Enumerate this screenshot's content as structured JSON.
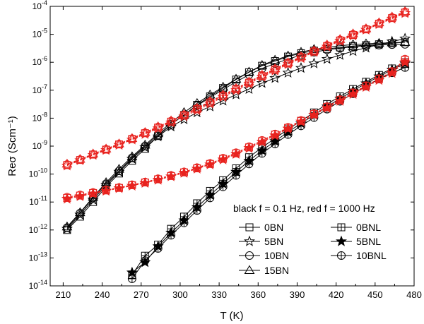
{
  "chart_data": {
    "type": "scatter",
    "xlabel": "T (K)",
    "ylabel": "Reσ (Scm⁻¹)",
    "xlim": [
      200,
      480
    ],
    "ylim_log10": [
      -14,
      -4
    ],
    "y_scale": "log",
    "x_ticks": [
      "210",
      "240",
      "270",
      "300",
      "330",
      "360",
      "390",
      "420",
      "450",
      "480"
    ],
    "y_ticks": [
      {
        "base": "10",
        "exp": "-14"
      },
      {
        "base": "10",
        "exp": "-13"
      },
      {
        "base": "10",
        "exp": "-12"
      },
      {
        "base": "10",
        "exp": "-11"
      },
      {
        "base": "10",
        "exp": "-10"
      },
      {
        "base": "10",
        "exp": "-9"
      },
      {
        "base": "10",
        "exp": "-8"
      },
      {
        "base": "10",
        "exp": "-7"
      },
      {
        "base": "10",
        "exp": "-6"
      },
      {
        "base": "10",
        "exp": "-5"
      },
      {
        "base": "10",
        "exp": "-4"
      }
    ],
    "annotation": "black f = 0.1 Hz, red f = 1000 Hz",
    "colors": {
      "black": "#000000",
      "red": "#e8231f"
    },
    "legend": {
      "placement": "bottom-right",
      "entries": [
        {
          "label": "0BN",
          "marker": "square"
        },
        {
          "label": "5BN",
          "marker": "star"
        },
        {
          "label": "10BN",
          "marker": "circle"
        },
        {
          "label": "15BN",
          "marker": "triangle"
        },
        {
          "label": "0BNL",
          "marker": "square-plus"
        },
        {
          "label": "5BNL",
          "marker": "star-filled"
        },
        {
          "label": "10BNL",
          "marker": "circle-plus"
        }
      ]
    },
    "series": [
      {
        "name": "0BN",
        "freq": "0.1 Hz",
        "color": "black",
        "marker": "square",
        "x": [
          213,
          223,
          233,
          243,
          253,
          263,
          273,
          283,
          293,
          303,
          313,
          323,
          333,
          343,
          353,
          363,
          373,
          383,
          393,
          403,
          413,
          423,
          433,
          443,
          453,
          463,
          473
        ],
        "y": [
          1e-12,
          3e-12,
          1e-11,
          3.5e-11,
          1.05e-10,
          3e-10,
          8e-10,
          2.3e-09,
          6e-09,
          1.3e-08,
          3e-08,
          6e-08,
          1.2e-07,
          2.4e-07,
          4.4e-07,
          7.5e-07,
          1.1e-06,
          1.6e-06,
          2.1e-06,
          2.6e-06,
          3e-06,
          3.4e-06,
          3.8e-06,
          4.1e-06,
          4.4e-06,
          4.8e-06,
          5.2e-06
        ]
      },
      {
        "name": "5BN",
        "freq": "0.1 Hz",
        "color": "black",
        "marker": "star",
        "x": [
          213,
          223,
          233,
          243,
          253,
          263,
          273,
          283,
          293,
          303,
          313,
          323,
          333,
          343,
          353,
          363,
          373,
          383,
          393,
          403,
          413,
          423,
          433,
          443,
          453,
          463,
          473
        ],
        "y": [
          1.1e-12,
          3.5e-12,
          1.2e-11,
          4e-11,
          1.2e-10,
          3.5e-10,
          9e-10,
          2.2e-09,
          5e-09,
          9e-09,
          1.6e-08,
          2.6e-08,
          4.2e-08,
          7e-08,
          1.1e-07,
          1.8e-07,
          2.7e-07,
          4.2e-07,
          6.2e-07,
          9e-07,
          1.3e-06,
          1.8e-06,
          2.5e-06,
          3.3e-06,
          4.3e-06,
          5.5e-06,
          7e-06
        ]
      },
      {
        "name": "10BN",
        "freq": "0.1 Hz",
        "color": "black",
        "marker": "circle",
        "x": [
          213,
          223,
          233,
          243,
          253,
          263,
          273,
          283,
          293,
          303,
          313,
          323,
          333,
          343,
          353,
          363,
          373,
          383,
          393,
          403,
          413,
          423,
          433,
          443,
          453,
          463,
          473
        ],
        "y": [
          1.2e-12,
          4e-12,
          1.4e-11,
          4.5e-11,
          1.3e-10,
          3.8e-10,
          1e-09,
          2.5e-09,
          6e-09,
          1.3e-08,
          2.8e-08,
          5.5e-08,
          1.05e-07,
          2e-07,
          3.6e-07,
          6e-07,
          9e-07,
          1.3e-06,
          1.8e-06,
          2.3e-06,
          2.8e-06,
          3.2e-06,
          3.6e-06,
          3.9e-06,
          4.1e-06,
          4.3e-06,
          4.4e-06
        ]
      },
      {
        "name": "15BN",
        "freq": "0.1 Hz",
        "color": "black",
        "marker": "triangle",
        "x": [
          213,
          223,
          233,
          243,
          253,
          263,
          273,
          283,
          293,
          303,
          313,
          323,
          333,
          343,
          353,
          363,
          373,
          383,
          393,
          403,
          413,
          423,
          433,
          443,
          453,
          463,
          473
        ],
        "y": [
          1.3e-12,
          4.2e-12,
          1.5e-11,
          5e-11,
          1.5e-10,
          4.2e-10,
          1.1e-09,
          2.8e-09,
          7e-09,
          1.6e-08,
          3.4e-08,
          6.8e-08,
          1.3e-07,
          2.5e-07,
          4.5e-07,
          7.8e-07,
          1.2e-06,
          1.7e-06,
          2.3e-06,
          2.9e-06,
          3.4e-06,
          3.9e-06,
          4.3e-06,
          4.6e-06,
          4.8e-06,
          5e-06,
          5.2e-06
        ]
      },
      {
        "name": "0BNL",
        "freq": "0.1 Hz",
        "color": "black",
        "marker": "square-plus",
        "x": [
          263,
          273,
          283,
          293,
          303,
          313,
          323,
          333,
          343,
          353,
          363,
          373,
          383,
          393,
          403,
          413,
          423,
          433,
          443,
          453,
          463,
          473
        ],
        "y": [
          2.5e-14,
          1.2e-13,
          3e-13,
          1.1e-12,
          3e-12,
          9e-12,
          2.5e-11,
          6e-11,
          1.6e-10,
          4e-10,
          9e-10,
          1.9e-09,
          4e-09,
          8e-09,
          1.6e-08,
          3.2e-08,
          6e-08,
          1.1e-07,
          2e-07,
          3.5e-07,
          6e-07,
          1e-06
        ]
      },
      {
        "name": "5BNL",
        "freq": "0.1 Hz",
        "color": "black",
        "marker": "star-filled",
        "x": [
          263,
          273,
          283,
          293,
          303,
          313,
          323,
          333,
          343,
          353,
          363,
          373,
          383,
          393,
          403,
          413,
          423,
          433,
          443,
          453,
          463,
          473
        ],
        "y": [
          3e-14,
          7e-14,
          2.6e-13,
          8e-13,
          2.2e-12,
          6.5e-12,
          1.8e-11,
          4.5e-11,
          1.2e-10,
          3e-10,
          7e-10,
          1.5e-09,
          3.2e-09,
          6.5e-09,
          1.3e-08,
          2.6e-08,
          5e-08,
          9.5e-08,
          1.75e-07,
          3.1e-07,
          5.4e-07,
          9e-07
        ]
      },
      {
        "name": "10BNL",
        "freq": "0.1 Hz",
        "color": "black",
        "marker": "circle-plus",
        "x": [
          263,
          273,
          283,
          293,
          303,
          313,
          323,
          333,
          343,
          353,
          363,
          373,
          383,
          393,
          403,
          413,
          423,
          433,
          443,
          453,
          463,
          473
        ],
        "y": [
          1.8e-14,
          8e-14,
          2.2e-13,
          6.5e-13,
          1.8e-12,
          5e-12,
          1.4e-11,
          3.5e-11,
          9e-11,
          2.3e-10,
          5.5e-10,
          1.2e-09,
          2.6e-09,
          5.3e-09,
          1.05e-08,
          2.1e-08,
          4e-08,
          7.5e-08,
          1.4e-07,
          2.5e-07,
          4.2e-07,
          6.5e-07
        ]
      },
      {
        "name": "0BN",
        "freq": "1000 Hz",
        "color": "red",
        "marker": "square",
        "x": [
          213,
          223,
          233,
          243,
          253,
          263,
          273,
          283,
          293,
          303,
          313,
          323,
          333,
          343,
          353,
          363,
          373,
          383,
          393,
          403,
          413,
          423,
          433,
          443,
          453,
          463,
          473
        ],
        "y": [
          2.1e-10,
          3.2e-10,
          5e-10,
          7.5e-10,
          1.15e-09,
          1.8e-09,
          2.9e-09,
          4.6e-09,
          7.5e-09,
          1.25e-08,
          2.1e-08,
          3.6e-08,
          6.2e-08,
          1.08e-07,
          1.85e-07,
          3.2e-07,
          5.4e-07,
          9e-07,
          1.5e-06,
          2.4e-06,
          3.8e-06,
          6e-06,
          9.5e-06,
          1.5e-05,
          2.4e-05,
          3.8e-05,
          6e-05
        ]
      },
      {
        "name": "5BN",
        "freq": "1000 Hz",
        "color": "red",
        "marker": "star",
        "x": [
          213,
          223,
          233,
          243,
          253,
          263,
          273,
          283,
          293,
          303,
          313,
          323,
          333,
          343,
          353,
          363,
          373,
          383,
          393,
          403,
          413,
          423,
          433,
          443,
          453,
          463,
          473
        ],
        "y": [
          2e-10,
          3.1e-10,
          4.8e-10,
          7.2e-10,
          1.1e-09,
          1.7e-09,
          2.7e-09,
          4.3e-09,
          7e-09,
          1.15e-08,
          1.9e-08,
          3.3e-08,
          5.7e-08,
          1e-07,
          1.7e-07,
          3e-07,
          5e-07,
          8.5e-07,
          1.4e-06,
          2.3e-06,
          3.6e-06,
          5.7e-06,
          9e-06,
          1.45e-05,
          2.3e-05,
          3.6e-05,
          5.7e-05
        ]
      },
      {
        "name": "10BN",
        "freq": "1000 Hz",
        "color": "red",
        "marker": "circle",
        "x": [
          213,
          223,
          233,
          243,
          253,
          263,
          273,
          283,
          293,
          303,
          313,
          323,
          333,
          343,
          353,
          363,
          373,
          383,
          393,
          403,
          413,
          423,
          433,
          443,
          453,
          463,
          473
        ],
        "y": [
          2.2e-10,
          3.3e-10,
          5.1e-10,
          7.7e-10,
          1.18e-09,
          1.85e-09,
          3e-09,
          4.8e-09,
          7.8e-09,
          1.3e-08,
          2.2e-08,
          3.8e-08,
          6.5e-08,
          1.12e-07,
          1.95e-07,
          3.4e-07,
          5.7e-07,
          9.5e-07,
          1.55e-06,
          2.5e-06,
          4e-06,
          6.3e-06,
          1e-05,
          1.55e-05,
          2.5e-05,
          4e-05,
          6.3e-05
        ]
      },
      {
        "name": "15BN",
        "freq": "1000 Hz",
        "color": "red",
        "marker": "triangle",
        "x": [
          213,
          223,
          233,
          243,
          253,
          263,
          273,
          283,
          293,
          303,
          313,
          323,
          333,
          343,
          353,
          363,
          373,
          383,
          393,
          403,
          413,
          423,
          433,
          443,
          453,
          463,
          473
        ],
        "y": [
          2.3e-10,
          3.4e-10,
          5.3e-10,
          8e-10,
          1.22e-09,
          1.9e-09,
          3.1e-09,
          5e-09,
          8.1e-09,
          1.35e-08,
          2.3e-08,
          4e-08,
          6.8e-08,
          1.17e-07,
          2e-07,
          3.5e-07,
          5.9e-07,
          9.8e-07,
          1.6e-06,
          2.6e-06,
          4.2e-06,
          6.6e-06,
          1.05e-05,
          1.6e-05,
          2.6e-05,
          4.2e-05,
          6.6e-05
        ]
      },
      {
        "name": "0BNL",
        "freq": "1000 Hz",
        "color": "red",
        "marker": "square-plus",
        "x": [
          213,
          223,
          233,
          243,
          253,
          263,
          273,
          283,
          293,
          303,
          313,
          323,
          333,
          343,
          353,
          363,
          373,
          383,
          393,
          403,
          413,
          423,
          433,
          443,
          453,
          463,
          473
        ],
        "y": [
          1.4e-11,
          1.7e-11,
          2.1e-11,
          2.6e-11,
          3.2e-11,
          4e-11,
          5e-11,
          6.5e-11,
          8.5e-11,
          1.15e-10,
          1.6e-10,
          2.3e-10,
          3.5e-10,
          5.5e-10,
          9e-10,
          1.5e-09,
          2.6e-09,
          4.5e-09,
          8e-09,
          1.4e-08,
          2.5e-08,
          4.4e-08,
          7.8e-08,
          1.4e-07,
          2.5e-07,
          4.5e-07,
          1.2e-06
        ]
      },
      {
        "name": "5BNL",
        "freq": "1000 Hz",
        "color": "red",
        "marker": "star-filled",
        "x": [
          213,
          223,
          233,
          243,
          253,
          263,
          273,
          283,
          293,
          303,
          313,
          323,
          333,
          343,
          353,
          363,
          373,
          383,
          393,
          403,
          413,
          423,
          433,
          443,
          453,
          463,
          473
        ],
        "y": [
          1.3e-11,
          1.6e-11,
          2e-11,
          2.5e-11,
          3.1e-11,
          3.8e-11,
          4.8e-11,
          6.2e-11,
          8.2e-11,
          1.1e-10,
          1.55e-10,
          2.2e-10,
          3.3e-10,
          5.2e-10,
          8.5e-10,
          1.4e-09,
          2.4e-09,
          4.2e-09,
          7.5e-09,
          1.3e-08,
          2.3e-08,
          4.1e-08,
          7.3e-08,
          1.3e-07,
          2.3e-07,
          4.1e-07,
          1e-06
        ]
      },
      {
        "name": "10BNL",
        "freq": "1000 Hz",
        "color": "red",
        "marker": "circle-plus",
        "x": [
          213,
          223,
          233,
          243,
          253,
          263,
          273,
          283,
          293,
          303,
          313,
          323,
          333,
          343,
          353,
          363,
          373,
          383,
          393,
          403,
          413,
          423,
          433,
          443,
          453,
          463,
          473
        ],
        "y": [
          1.5e-11,
          1.8e-11,
          2.2e-11,
          2.7e-11,
          3.3e-11,
          4.1e-11,
          5.2e-11,
          6.8e-11,
          9e-11,
          1.2e-10,
          1.7e-10,
          2.4e-10,
          3.7e-10,
          5.8e-10,
          9.5e-10,
          1.6e-09,
          2.7e-09,
          4.7e-09,
          8.3e-09,
          1.45e-08,
          2.6e-08,
          4.6e-08,
          8.2e-08,
          1.45e-07,
          2.6e-07,
          4.7e-07,
          1.3e-06
        ]
      }
    ]
  }
}
